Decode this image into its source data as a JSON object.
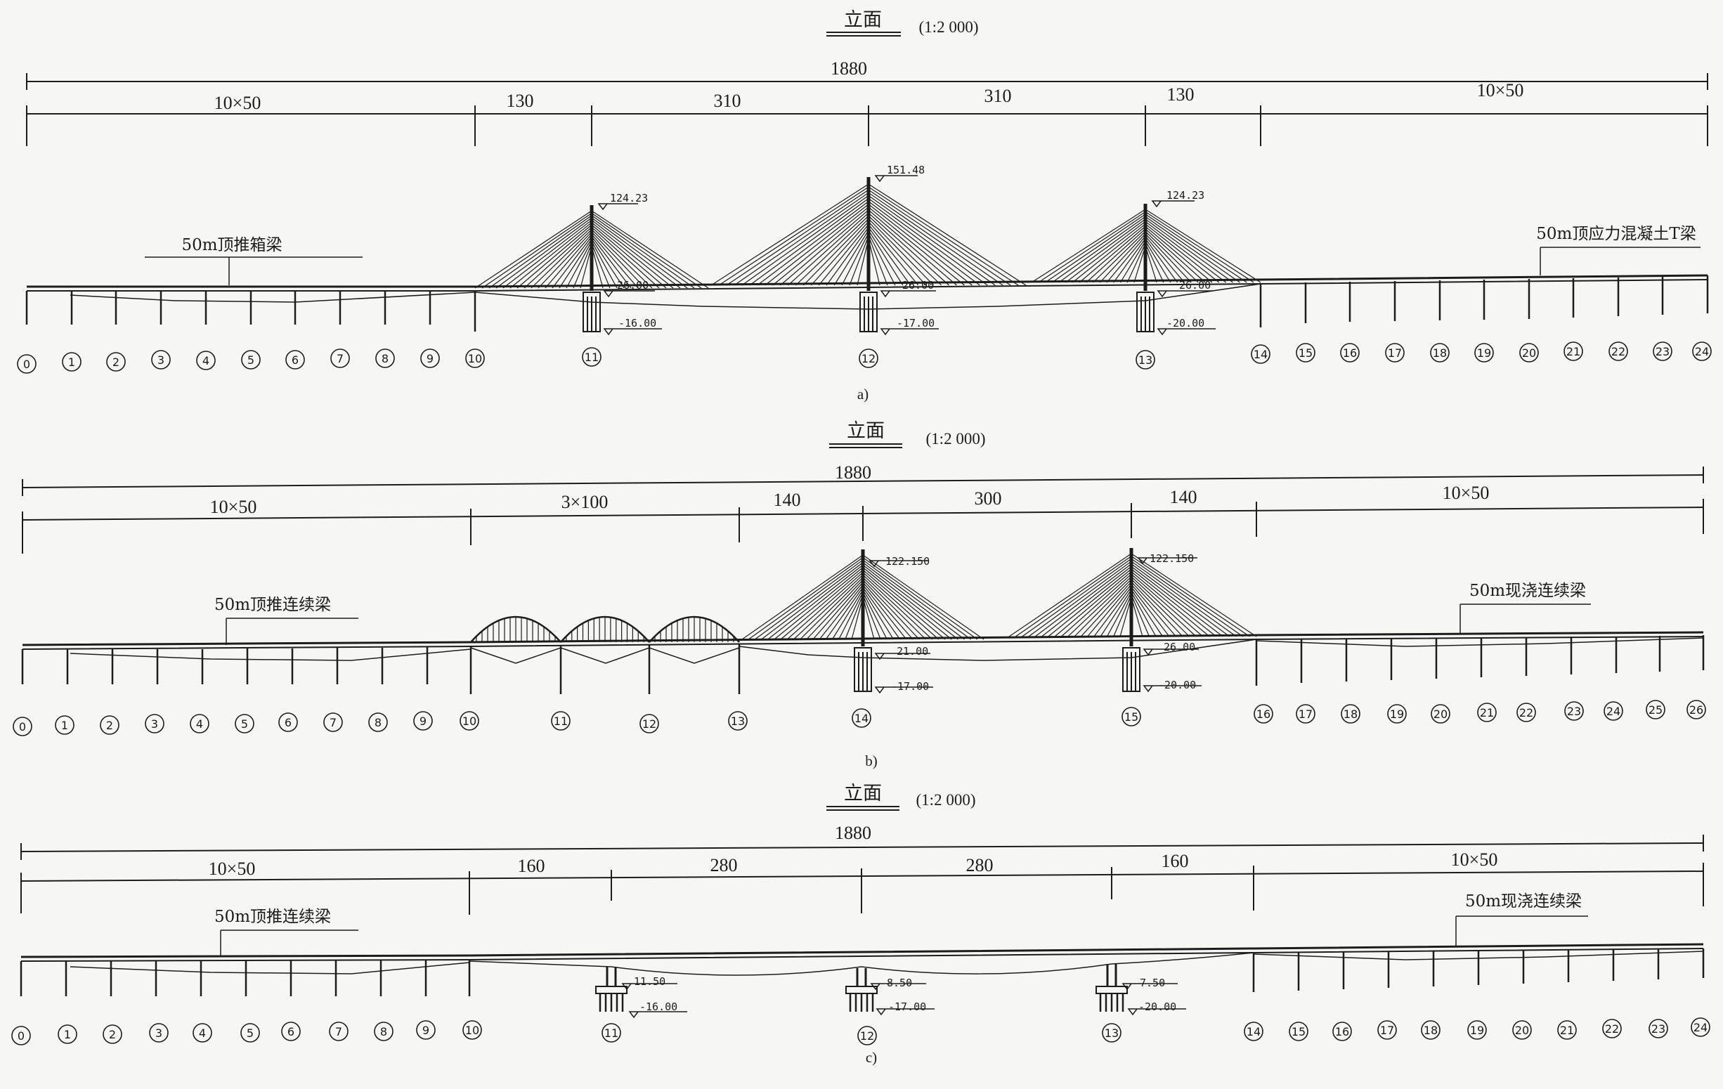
{
  "panels": [
    {
      "caption": "a)",
      "title": "立面",
      "scale": "(1:2 000)",
      "total": "1880",
      "segments": [
        "10×50",
        "130",
        "310",
        "310",
        "130",
        "10×50"
      ],
      "beam_left": "50m顶推箱梁",
      "beam_right": "50m顶应力混凝土T梁",
      "elevations": [
        "124.23",
        "26.00",
        "-16.00",
        "151.48",
        "26.00",
        "-17.00",
        "124.23",
        "26.00",
        "-20.00"
      ],
      "piers": [
        "0",
        "1",
        "2",
        "3",
        "4",
        "5",
        "6",
        "7",
        "8",
        "9",
        "10",
        "11",
        "12",
        "13",
        "14",
        "15",
        "16",
        "17",
        "18",
        "19",
        "20",
        "21",
        "22",
        "23",
        "24"
      ]
    },
    {
      "caption": "b)",
      "title": "立面",
      "scale": "(1:2 000)",
      "total": "1880",
      "segments": [
        "10×50",
        "3×100",
        "140",
        "300",
        "140",
        "10×50"
      ],
      "beam_left": "50m顶推连续梁",
      "beam_right": "50m现浇连续梁",
      "elevations": [
        "122.150",
        "21.00",
        "-17.00",
        "122.150",
        "26.00",
        "-20.00"
      ],
      "piers": [
        "0",
        "1",
        "2",
        "3",
        "4",
        "5",
        "6",
        "7",
        "8",
        "9",
        "10",
        "11",
        "12",
        "13",
        "14",
        "15",
        "16",
        "17",
        "18",
        "19",
        "20",
        "21",
        "22",
        "23",
        "24",
        "25",
        "26"
      ]
    },
    {
      "caption": "c)",
      "title": "立面",
      "scale": "(1:2 000)",
      "total": "1880",
      "segments": [
        "10×50",
        "160",
        "280",
        "280",
        "160",
        "10×50"
      ],
      "beam_left": "50m顶推连续梁",
      "beam_right": "50m现浇连续梁",
      "elevations": [
        "11.50",
        "-16.00",
        "8.50",
        "-17.00",
        "7.50",
        "-20.00"
      ],
      "piers": [
        "0",
        "1",
        "2",
        "3",
        "4",
        "5",
        "6",
        "7",
        "8",
        "9",
        "10",
        "11",
        "12",
        "13",
        "14",
        "15",
        "16",
        "17",
        "18",
        "19",
        "20",
        "21",
        "22",
        "23",
        "24"
      ]
    }
  ]
}
